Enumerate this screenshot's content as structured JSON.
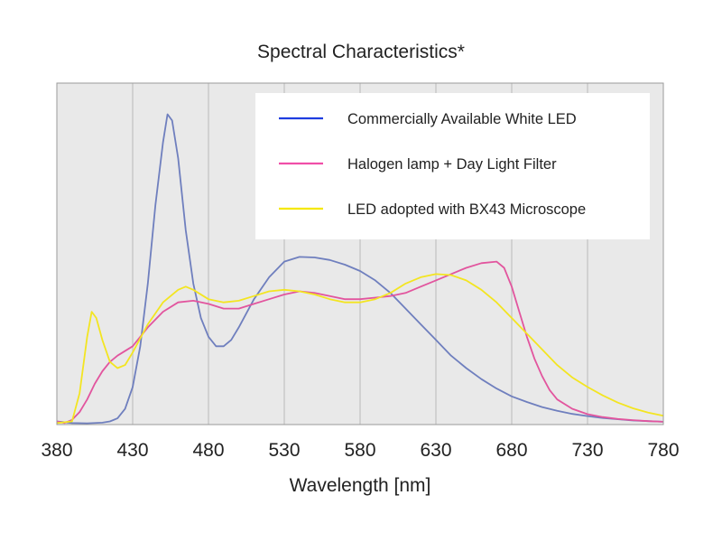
{
  "chart_data": {
    "type": "line",
    "title": "Spectral Characteristics*",
    "xlabel": "Wavelength [nm]",
    "ylabel": "",
    "xlim": [
      380,
      780
    ],
    "ylim": [
      0,
      1
    ],
    "x_ticks": [
      380,
      430,
      480,
      530,
      580,
      630,
      680,
      730,
      780
    ],
    "grid": "vertical",
    "legend_position": "top-right",
    "background": "#e9e9e9",
    "series": [
      {
        "name": "Commercially Available White LED",
        "color": "#6f7fbe",
        "legend_color": "#1f3de0",
        "points": [
          [
            380,
            0.01
          ],
          [
            390,
            0.005
          ],
          [
            400,
            0.004
          ],
          [
            410,
            0.006
          ],
          [
            415,
            0.01
          ],
          [
            420,
            0.02
          ],
          [
            425,
            0.05
          ],
          [
            430,
            0.12
          ],
          [
            435,
            0.25
          ],
          [
            440,
            0.45
          ],
          [
            445,
            0.7
          ],
          [
            450,
            0.9
          ],
          [
            453,
            0.99
          ],
          [
            456,
            0.97
          ],
          [
            460,
            0.85
          ],
          [
            465,
            0.62
          ],
          [
            470,
            0.45
          ],
          [
            475,
            0.34
          ],
          [
            480,
            0.28
          ],
          [
            485,
            0.25
          ],
          [
            490,
            0.25
          ],
          [
            495,
            0.27
          ],
          [
            500,
            0.31
          ],
          [
            510,
            0.4
          ],
          [
            520,
            0.47
          ],
          [
            530,
            0.52
          ],
          [
            540,
            0.535
          ],
          [
            550,
            0.533
          ],
          [
            560,
            0.525
          ],
          [
            570,
            0.51
          ],
          [
            580,
            0.49
          ],
          [
            590,
            0.46
          ],
          [
            600,
            0.42
          ],
          [
            610,
            0.37
          ],
          [
            620,
            0.32
          ],
          [
            630,
            0.27
          ],
          [
            640,
            0.22
          ],
          [
            650,
            0.18
          ],
          [
            660,
            0.145
          ],
          [
            670,
            0.115
          ],
          [
            680,
            0.09
          ],
          [
            690,
            0.072
          ],
          [
            700,
            0.056
          ],
          [
            710,
            0.044
          ],
          [
            720,
            0.034
          ],
          [
            730,
            0.027
          ],
          [
            740,
            0.021
          ],
          [
            750,
            0.017
          ],
          [
            760,
            0.013
          ],
          [
            770,
            0.011
          ],
          [
            780,
            0.009
          ]
        ]
      },
      {
        "name": "Halogen lamp + Day Light Filter",
        "color": "#e2559e",
        "legend_color": "#f04fa8",
        "points": [
          [
            380,
            0.01
          ],
          [
            385,
            0.005
          ],
          [
            390,
            0.015
          ],
          [
            395,
            0.04
          ],
          [
            400,
            0.08
          ],
          [
            405,
            0.13
          ],
          [
            410,
            0.17
          ],
          [
            415,
            0.2
          ],
          [
            420,
            0.22
          ],
          [
            430,
            0.25
          ],
          [
            440,
            0.31
          ],
          [
            450,
            0.36
          ],
          [
            460,
            0.39
          ],
          [
            470,
            0.395
          ],
          [
            480,
            0.385
          ],
          [
            490,
            0.37
          ],
          [
            500,
            0.37
          ],
          [
            510,
            0.385
          ],
          [
            520,
            0.4
          ],
          [
            530,
            0.415
          ],
          [
            540,
            0.425
          ],
          [
            550,
            0.42
          ],
          [
            560,
            0.41
          ],
          [
            570,
            0.4
          ],
          [
            580,
            0.4
          ],
          [
            590,
            0.405
          ],
          [
            600,
            0.41
          ],
          [
            610,
            0.42
          ],
          [
            620,
            0.44
          ],
          [
            630,
            0.46
          ],
          [
            640,
            0.48
          ],
          [
            650,
            0.5
          ],
          [
            660,
            0.515
          ],
          [
            670,
            0.52
          ],
          [
            675,
            0.5
          ],
          [
            680,
            0.44
          ],
          [
            685,
            0.36
          ],
          [
            690,
            0.28
          ],
          [
            695,
            0.21
          ],
          [
            700,
            0.155
          ],
          [
            705,
            0.11
          ],
          [
            710,
            0.08
          ],
          [
            720,
            0.05
          ],
          [
            730,
            0.033
          ],
          [
            740,
            0.024
          ],
          [
            750,
            0.018
          ],
          [
            760,
            0.014
          ],
          [
            770,
            0.011
          ],
          [
            780,
            0.009
          ]
        ]
      },
      {
        "name": "LED adopted with BX43 Microscope",
        "color": "#f3e521",
        "legend_color": "#f5e800",
        "points": [
          [
            380,
            0.005
          ],
          [
            390,
            0.01
          ],
          [
            395,
            0.1
          ],
          [
            400,
            0.28
          ],
          [
            403,
            0.36
          ],
          [
            406,
            0.34
          ],
          [
            410,
            0.27
          ],
          [
            415,
            0.2
          ],
          [
            420,
            0.18
          ],
          [
            425,
            0.19
          ],
          [
            430,
            0.23
          ],
          [
            440,
            0.32
          ],
          [
            450,
            0.39
          ],
          [
            460,
            0.43
          ],
          [
            465,
            0.44
          ],
          [
            470,
            0.43
          ],
          [
            480,
            0.4
          ],
          [
            490,
            0.39
          ],
          [
            500,
            0.395
          ],
          [
            510,
            0.41
          ],
          [
            520,
            0.425
          ],
          [
            530,
            0.43
          ],
          [
            540,
            0.425
          ],
          [
            550,
            0.415
          ],
          [
            560,
            0.4
          ],
          [
            570,
            0.39
          ],
          [
            580,
            0.39
          ],
          [
            590,
            0.4
          ],
          [
            600,
            0.42
          ],
          [
            610,
            0.45
          ],
          [
            620,
            0.47
          ],
          [
            630,
            0.48
          ],
          [
            640,
            0.477
          ],
          [
            650,
            0.46
          ],
          [
            660,
            0.43
          ],
          [
            670,
            0.39
          ],
          [
            680,
            0.34
          ],
          [
            690,
            0.29
          ],
          [
            700,
            0.24
          ],
          [
            710,
            0.19
          ],
          [
            720,
            0.15
          ],
          [
            730,
            0.12
          ],
          [
            740,
            0.093
          ],
          [
            750,
            0.07
          ],
          [
            760,
            0.052
          ],
          [
            770,
            0.038
          ],
          [
            780,
            0.028
          ]
        ]
      }
    ]
  }
}
